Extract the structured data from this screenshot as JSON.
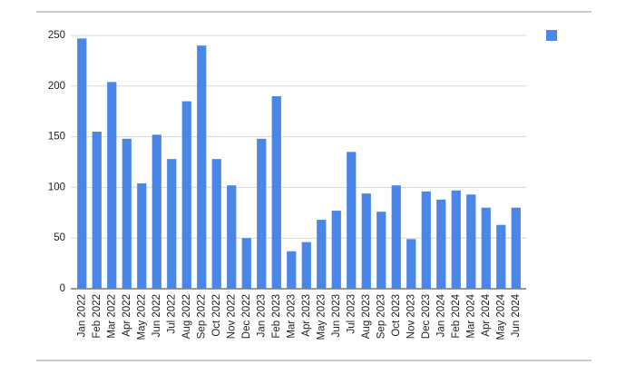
{
  "chart_data": {
    "type": "bar",
    "categories": [
      "Jan 2022",
      "Feb 2022",
      "Mar 2022",
      "Apr 2022",
      "May 2022",
      "Jun 2022",
      "Jul 2022",
      "Aug 2022",
      "Sep 2022",
      "Oct 2022",
      "Nov 2022",
      "Dec 2022",
      "Jan 2023",
      "Feb 2023",
      "Mar 2023",
      "Apr 2023",
      "May 2023",
      "Jun 2023",
      "Jul 2023",
      "Aug 2023",
      "Sep 2023",
      "Oct 2023",
      "Nov 2023",
      "Dec 2023",
      "Jan 2024",
      "Feb 2024",
      "Mar 2024",
      "Apr 2024",
      "May 2024",
      "Jun 2024"
    ],
    "values": [
      247,
      155,
      204,
      148,
      104,
      152,
      128,
      185,
      240,
      128,
      102,
      50,
      148,
      190,
      37,
      46,
      68,
      77,
      135,
      94,
      76,
      102,
      49,
      96,
      88,
      97,
      93,
      80,
      63,
      80
    ],
    "color": "#4a86e8",
    "ylim": [
      0,
      250
    ],
    "yticks": [
      0,
      50,
      100,
      150,
      200,
      250
    ],
    "grid": true
  }
}
